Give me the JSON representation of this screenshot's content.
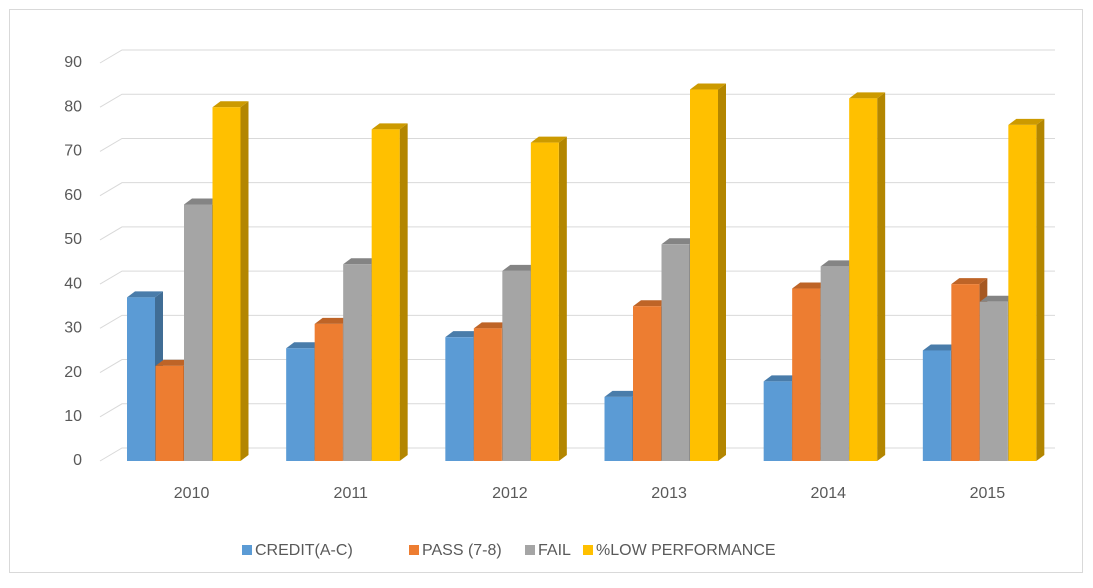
{
  "chart_data": {
    "type": "bar3d",
    "categories": [
      "2010",
      "2011",
      "2012",
      "2013",
      "2014",
      "2015"
    ],
    "series": [
      {
        "name": "CREDIT(A-C)",
        "color": "#5b9bd5",
        "values": [
          37,
          25.5,
          28,
          14.5,
          18,
          25
        ]
      },
      {
        "name": "PASS (7-8)",
        "color": "#ed7d31",
        "values": [
          21.5,
          31,
          30,
          35,
          39,
          40
        ]
      },
      {
        "name": "FAIL",
        "color": "#a5a5a5",
        "values": [
          58,
          44.5,
          43,
          49,
          44,
          36
        ]
      },
      {
        "name": "%LOW PERFORMANCE",
        "color": "#ffc000",
        "values": [
          80,
          75,
          72,
          84,
          82,
          76
        ]
      }
    ],
    "ylim": [
      0,
      90
    ],
    "yticks": [
      0,
      10,
      20,
      30,
      40,
      50,
      60,
      70,
      80,
      90
    ],
    "grid": true,
    "legend": "bottom"
  }
}
